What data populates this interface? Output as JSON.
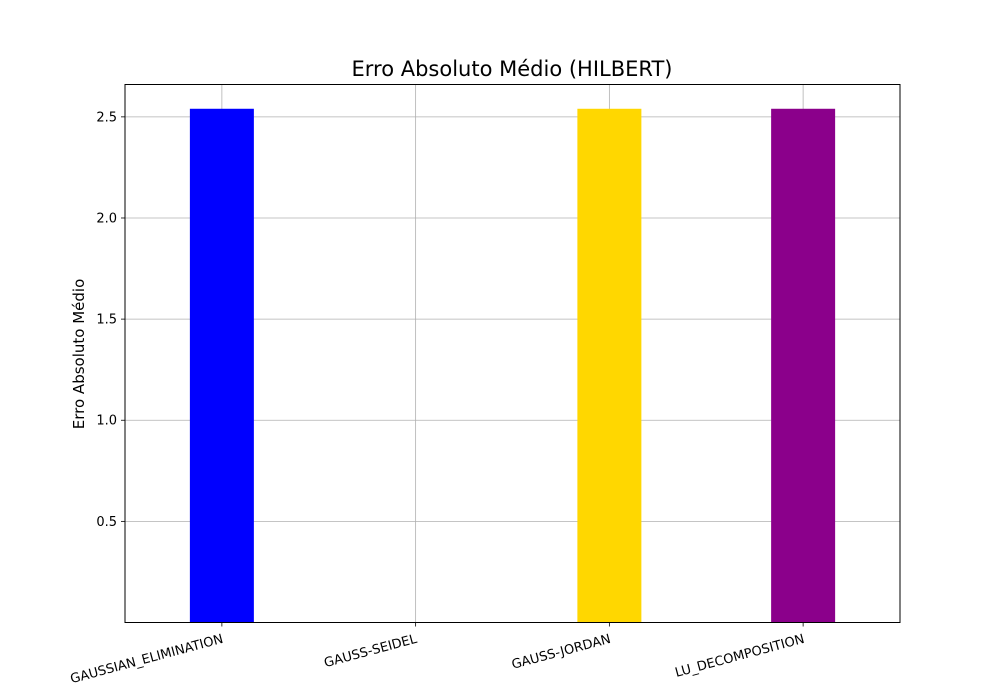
{
  "chart_data": {
    "type": "bar",
    "title": "Erro Absoluto Médio (HILBERT)",
    "xlabel": "",
    "ylabel": "Erro Absoluto Médio",
    "categories": [
      "GAUSSIAN_ELIMINATION",
      "GAUSS-SEIDEL",
      "GAUSS-JORDAN",
      "LU_DECOMPOSITION"
    ],
    "values": [
      2.54,
      null,
      2.54,
      2.54
    ],
    "colors": [
      "#0000ff",
      "#ffffff",
      "#ffd700",
      "#8b008b"
    ],
    "ylim": [
      0.0,
      2.66
    ],
    "yticks": [
      0.5,
      1.0,
      1.5,
      2.0,
      2.5
    ],
    "ytick_labels": [
      "0.5",
      "1.0",
      "1.5",
      "2.0",
      "2.5"
    ],
    "grid": true,
    "legend": "none"
  }
}
